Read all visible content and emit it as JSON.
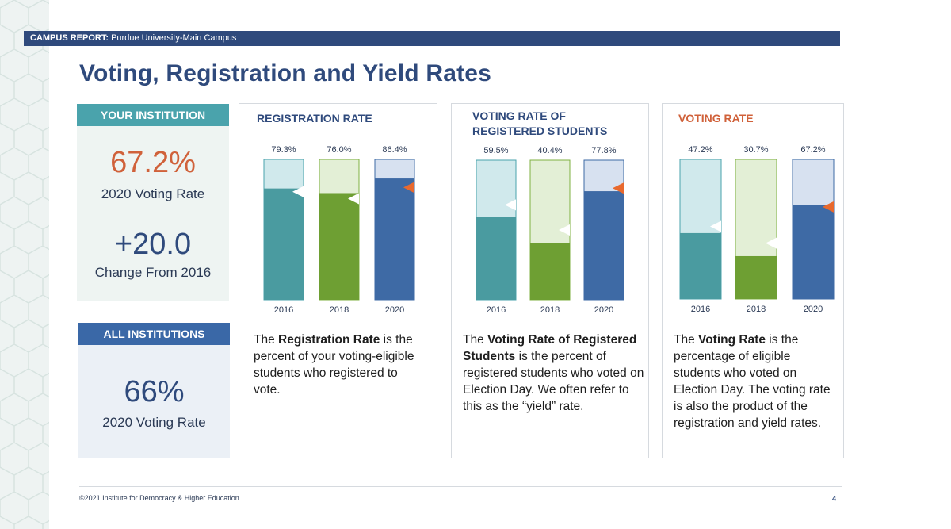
{
  "header": {
    "label": "CAMPUS REPORT:",
    "campus": "Purdue University-Main Campus"
  },
  "title": "Voting, Registration and Yield Rates",
  "your_institution": {
    "tab": "YOUR INSTITUTION",
    "voting_rate": "67.2%",
    "voting_rate_label": "2020 Voting Rate",
    "change": "+20.0",
    "change_label": "Change From 2016"
  },
  "all_institutions": {
    "tab": "ALL INSTITUTIONS",
    "voting_rate": "66%",
    "voting_rate_label": "2020 Voting Rate"
  },
  "panels": {
    "registration": {
      "title": "REGISTRATION RATE",
      "desc_pre": "The ",
      "desc_bold": "Registration Rate",
      "desc_post": " is the percent of your voting-eligible students who registered to vote."
    },
    "yield": {
      "title_line1": "VOTING RATE OF",
      "title_line2": "REGISTERED STUDENTS",
      "desc_pre": "The ",
      "desc_bold": "Voting Rate of Registered Students",
      "desc_post": " is the percent of registered students who voted on Election Day. We often refer to this as the “yield” rate."
    },
    "voting": {
      "title": "VOTING RATE",
      "desc_pre": "The ",
      "desc_bold": "Voting Rate",
      "desc_post": " is the percentage of eligible students who voted on Election Day. The voting rate is also the product of the registration and yield rates."
    }
  },
  "chart_data": [
    {
      "type": "bar",
      "title": "REGISTRATION RATE",
      "categories": [
        "2016",
        "2018",
        "2020"
      ],
      "values": [
        79.3,
        76.0,
        86.4
      ],
      "value_labels": [
        "79.3%",
        "76.0%",
        "86.4%"
      ],
      "ylim": [
        0,
        100
      ],
      "comparison_markers": [
        77,
        72,
        80
      ],
      "colors": [
        "#4a9ba0",
        "#6e9f33",
        "#3e6aa5"
      ],
      "light_colors": [
        "#d0e9ec",
        "#e3efd6",
        "#d7e1f0"
      ],
      "border_colors": [
        "#4aa3ac",
        "#7fb041",
        "#3e6aa5"
      ]
    },
    {
      "type": "bar",
      "title": "VOTING RATE OF REGISTERED STUDENTS",
      "categories": [
        "2016",
        "2018",
        "2020"
      ],
      "values": [
        59.5,
        40.4,
        77.8
      ],
      "value_labels": [
        "59.5%",
        "40.4%",
        "77.8%"
      ],
      "ylim": [
        0,
        100
      ],
      "comparison_markers": [
        68,
        50,
        80
      ],
      "colors": [
        "#4a9ba0",
        "#6e9f33",
        "#3e6aa5"
      ],
      "light_colors": [
        "#d0e9ec",
        "#e3efd6",
        "#d7e1f0"
      ],
      "border_colors": [
        "#4aa3ac",
        "#7fb041",
        "#3e6aa5"
      ]
    },
    {
      "type": "bar",
      "title": "VOTING RATE",
      "categories": [
        "2016",
        "2018",
        "2020"
      ],
      "values": [
        47.2,
        30.7,
        67.2
      ],
      "value_labels": [
        "47.2%",
        "30.7%",
        "67.2%"
      ],
      "ylim": [
        0,
        100
      ],
      "comparison_markers": [
        52,
        40,
        66
      ],
      "colors": [
        "#4a9ba0",
        "#6e9f33",
        "#3e6aa5"
      ],
      "light_colors": [
        "#d0e9ec",
        "#e3efd6",
        "#d7e1f0"
      ],
      "border_colors": [
        "#4aa3ac",
        "#7fb041",
        "#3e6aa5"
      ]
    }
  ],
  "footer": {
    "copyright": "©2021 Institute for Democracy & Higher Education",
    "page": "4"
  }
}
